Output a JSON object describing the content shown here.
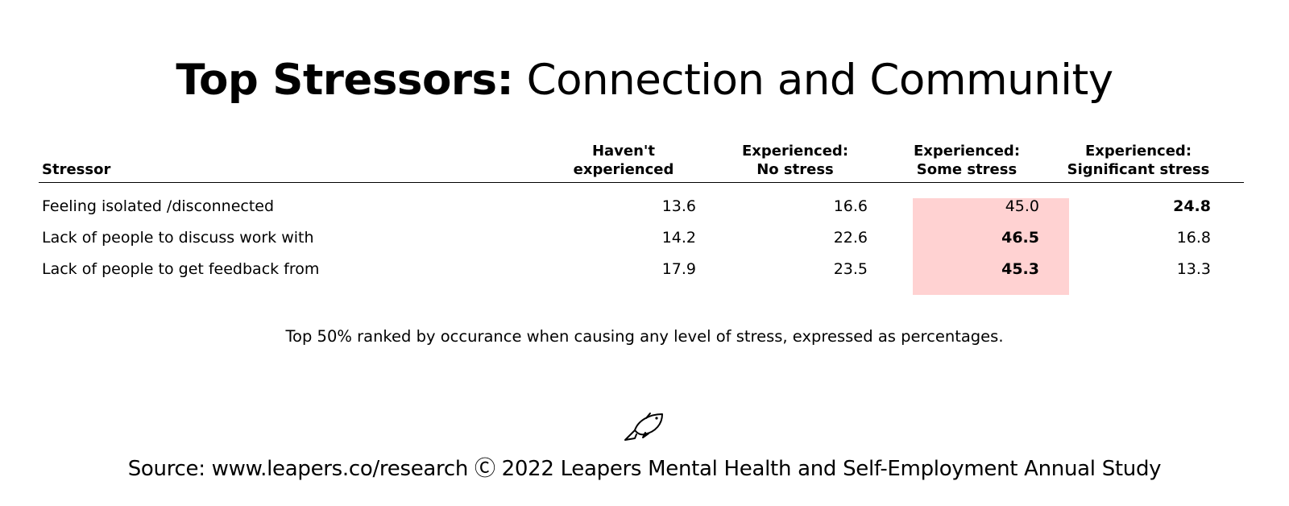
{
  "title": {
    "bold_part": "Top Stressors:",
    "rest": " Connection and Community"
  },
  "columns": [
    {
      "key": "stressor",
      "lines": [
        "Stressor"
      ]
    },
    {
      "key": "havent",
      "lines": [
        "Haven't",
        "experienced"
      ]
    },
    {
      "key": "no_stress",
      "lines": [
        "Experienced:",
        "No stress"
      ]
    },
    {
      "key": "some_stress",
      "lines": [
        "Experienced:",
        "Some stress"
      ]
    },
    {
      "key": "significant",
      "lines": [
        "Experienced:",
        "Significant stress"
      ]
    }
  ],
  "chart_data": {
    "type": "table",
    "title": "Top Stressors: Connection and Community",
    "columns": [
      "Stressor",
      "Haven't experienced",
      "Experienced: No stress",
      "Experienced: Some stress",
      "Experienced: Significant stress"
    ],
    "rows": [
      {
        "label": "Feeling isolated /disconnected",
        "values": [
          "13.6",
          "16.6",
          "45.0",
          "24.8"
        ],
        "bold_index": 3
      },
      {
        "label": "Lack of people to discuss work with",
        "values": [
          "14.2",
          "22.6",
          "46.5",
          "16.8"
        ],
        "bold_index": 2
      },
      {
        "label": "Lack of people to get feedback from",
        "values": [
          "17.9",
          "23.5",
          "45.3",
          "13.3"
        ],
        "bold_index": 2
      }
    ],
    "highlight_column": "Experienced: Some stress",
    "highlight_color": "#ffd2d2"
  },
  "note": "Top 50% ranked by occurance when causing any level of stress, expressed as percentages.",
  "logo_icon": "fish-icon",
  "source": "Source: www.leapers.co/research Ⓒ 2022 Leapers Mental Health and Self-Employment Annual Study"
}
